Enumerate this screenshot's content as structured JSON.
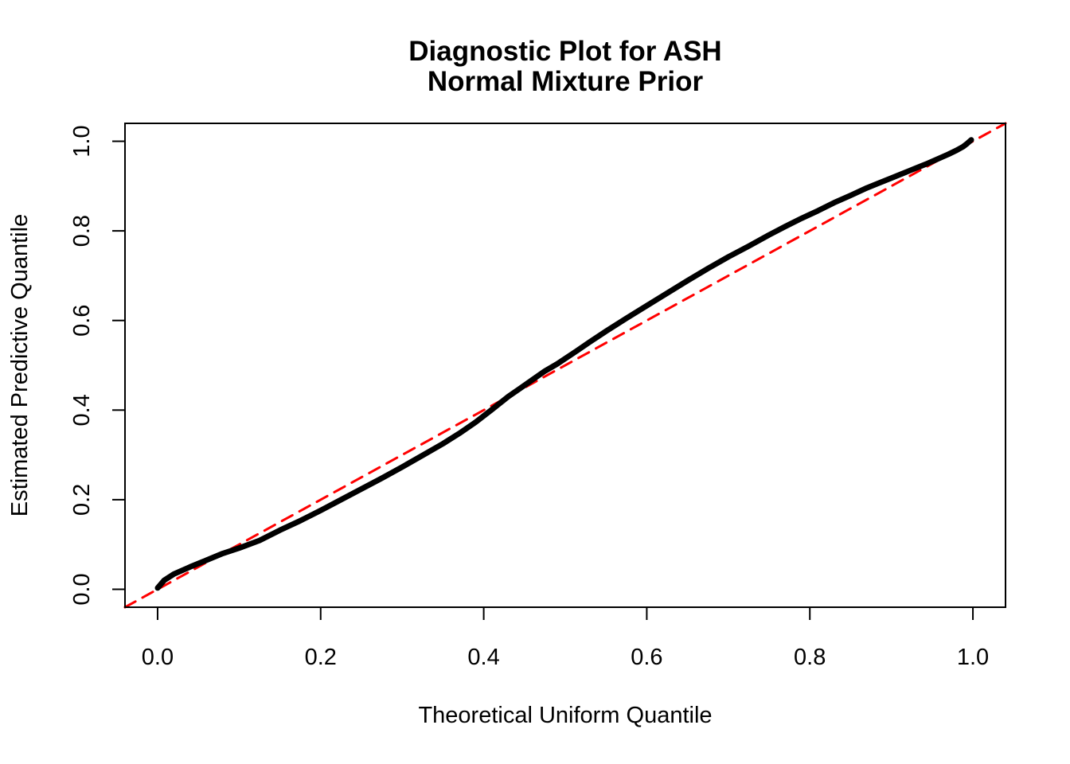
{
  "chart_data": {
    "type": "line",
    "title": "Diagnostic Plot for ASH Normal Mixture Prior",
    "title_lines": [
      "Diagnostic Plot for ASH",
      "Normal Mixture Prior"
    ],
    "xlabel": "Theoretical Uniform Quantile",
    "ylabel": "Estimated Predictive Quantile",
    "xlim": [
      -0.04,
      1.04
    ],
    "ylim": [
      -0.04,
      1.04
    ],
    "x_ticks": [
      0.0,
      0.2,
      0.4,
      0.6,
      0.8,
      1.0
    ],
    "y_ticks": [
      0.0,
      0.2,
      0.4,
      0.6,
      0.8,
      1.0
    ],
    "x_tick_labels": [
      "0.0",
      "0.2",
      "0.4",
      "0.6",
      "0.8",
      "1.0"
    ],
    "y_tick_labels": [
      "0.0",
      "0.2",
      "0.4",
      "0.6",
      "0.8",
      "1.0"
    ],
    "grid": false,
    "legend": "none",
    "series": [
      {
        "name": "estimated-vs-theoretical-quantile-curve",
        "color": "#000000",
        "dash": "solid",
        "line_width": 7,
        "points": [
          [
            0.0,
            0.003
          ],
          [
            0.008,
            0.02
          ],
          [
            0.02,
            0.034
          ],
          [
            0.04,
            0.05
          ],
          [
            0.06,
            0.065
          ],
          [
            0.08,
            0.08
          ],
          [
            0.1,
            0.092
          ],
          [
            0.125,
            0.109
          ],
          [
            0.15,
            0.132
          ],
          [
            0.175,
            0.153
          ],
          [
            0.2,
            0.176
          ],
          [
            0.225,
            0.2
          ],
          [
            0.25,
            0.224
          ],
          [
            0.275,
            0.248
          ],
          [
            0.3,
            0.273
          ],
          [
            0.325,
            0.299
          ],
          [
            0.35,
            0.325
          ],
          [
            0.37,
            0.348
          ],
          [
            0.39,
            0.373
          ],
          [
            0.41,
            0.401
          ],
          [
            0.43,
            0.43
          ],
          [
            0.445,
            0.449
          ],
          [
            0.46,
            0.468
          ],
          [
            0.475,
            0.487
          ],
          [
            0.49,
            0.503
          ],
          [
            0.514,
            0.532
          ],
          [
            0.53,
            0.552
          ],
          [
            0.55,
            0.576
          ],
          [
            0.575,
            0.605
          ],
          [
            0.6,
            0.633
          ],
          [
            0.625,
            0.661
          ],
          [
            0.65,
            0.689
          ],
          [
            0.675,
            0.716
          ],
          [
            0.7,
            0.742
          ],
          [
            0.725,
            0.766
          ],
          [
            0.75,
            0.791
          ],
          [
            0.77,
            0.81
          ],
          [
            0.79,
            0.828
          ],
          [
            0.81,
            0.845
          ],
          [
            0.83,
            0.863
          ],
          [
            0.85,
            0.879
          ],
          [
            0.87,
            0.896
          ],
          [
            0.885,
            0.907
          ],
          [
            0.9,
            0.918
          ],
          [
            0.915,
            0.929
          ],
          [
            0.93,
            0.94
          ],
          [
            0.945,
            0.951
          ],
          [
            0.96,
            0.963
          ],
          [
            0.97,
            0.971
          ],
          [
            0.98,
            0.98
          ],
          [
            0.988,
            0.988
          ],
          [
            0.993,
            0.995
          ],
          [
            0.998,
            1.003
          ]
        ]
      },
      {
        "name": "identity-reference-line",
        "color": "#FF0000",
        "dash": "dashed",
        "line_width": 3,
        "points": [
          [
            -0.04,
            -0.04
          ],
          [
            1.04,
            1.04
          ]
        ]
      }
    ]
  },
  "colors": {
    "curve": "#000000",
    "reference_line": "#FF0000",
    "axis": "#000000",
    "background": "#FFFFFF"
  }
}
